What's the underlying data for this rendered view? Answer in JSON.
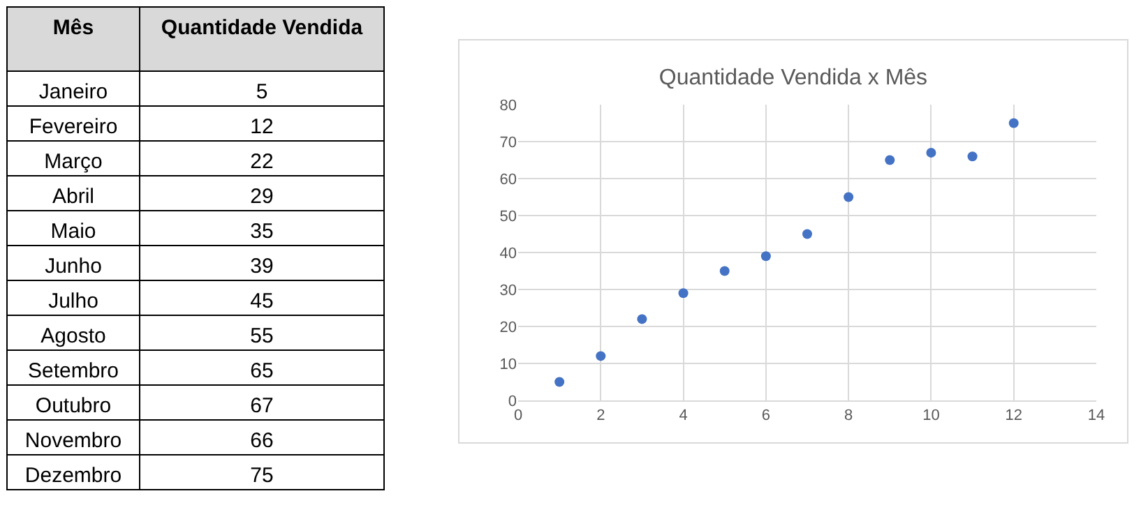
{
  "chart_data": [
    {
      "type": "other",
      "data_labels": true,
      "xlabel": "Mês",
      "ylabel": "Quantidade Vendida",
      "categories": [
        "Janeiro",
        "Fevereiro",
        "Março",
        "Abril",
        "Maio",
        "Junho",
        "Julho",
        "Agosto",
        "Setembro",
        "Outubro",
        "Novembro",
        "Dezembro"
      ],
      "values": [
        5,
        12,
        22,
        29,
        35,
        39,
        45,
        55,
        65,
        67,
        66,
        75
      ]
    },
    {
      "type": "scatter",
      "title": "Quantidade Vendida x Mês",
      "x": [
        1,
        2,
        3,
        4,
        5,
        6,
        7,
        8,
        9,
        10,
        11,
        12
      ],
      "series": [
        {
          "color": "#4472c4",
          "values": [
            5,
            12,
            22,
            29,
            35,
            39,
            45,
            55,
            65,
            67,
            66,
            75
          ]
        }
      ],
      "xlim": [
        0,
        14
      ],
      "xticks": [
        0,
        2,
        4,
        6,
        8,
        10,
        12,
        14
      ],
      "ylim": [
        0,
        80
      ],
      "yticks": [
        0,
        10,
        20,
        30,
        40,
        50,
        60,
        70,
        80
      ],
      "grid": true,
      "marker": "circle"
    }
  ]
}
